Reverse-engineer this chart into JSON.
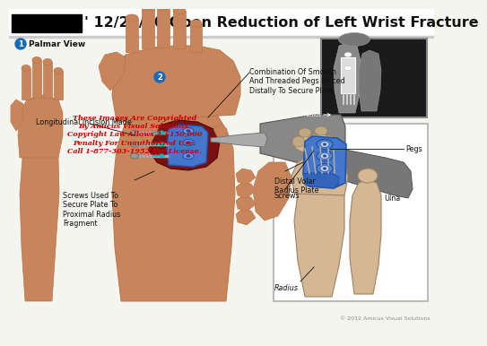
{
  "title": "' 12/21/10 Open Reduction of Left Wrist Fracture",
  "title_fontsize": 11.5,
  "bg_color": "#f5f5f0",
  "label_palmar": "Palmar View",
  "label_1_color": "#1a6ab5",
  "label_2_color": "#1a6ab5",
  "copyright_lines": "These Images Are Copyrighted\nBy Amicus Visual Solutions.\nCopyright Law Allows A $150,000\nPenalty For Unauthorized Use.\nCall 1-877-303-1952 For License.",
  "copyright_color": "#cc0000",
  "copyright_fontsize": 5.8,
  "annotation_color": "#111111",
  "annotation_fontsize": 5.8,
  "labels": {
    "longitudinal": "Longitudinal Incision Made",
    "screws_label": "Screws Used To\nSecure Plate To\nProximal Radius\nFragment",
    "combination": "Combination Of Smooth\nAnd Threaded Pegs Placed\nDistally To Secure Plate",
    "pegs": "Pegs",
    "distal": "Distal Volar\nRadius Plate",
    "screws2": "Screws",
    "radius": "Radius",
    "ulna": "Ulna",
    "radius_xray": "Radius"
  },
  "footer": "© 2012 Amicus Visual Solutions",
  "footer_fontsize": 4.5,
  "skin_color": "#c8845a",
  "skin_mid": "#b87040",
  "skin_light": "#dba882",
  "blood_color": "#7a1010",
  "plate_color": "#4477cc",
  "plate_dark": "#2255aa",
  "screw_color": "#999999",
  "xray_bg": "#1a1a1a",
  "bone_color": "#d4b896",
  "bone_edge": "#a08060"
}
